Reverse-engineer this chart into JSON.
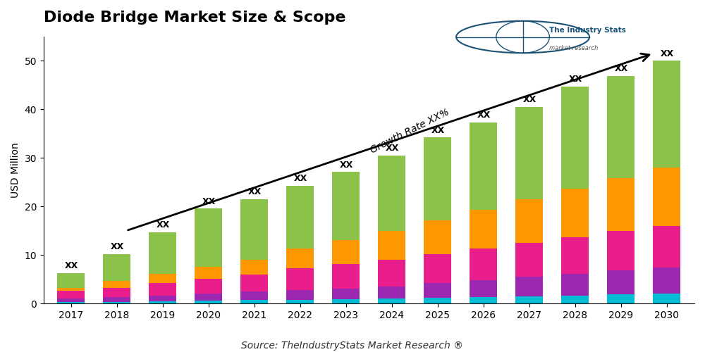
{
  "title": "Diode Bridge Market Size & Scope",
  "ylabel": "USD Million",
  "source": "Source: TheIndustryStats Market Research ®",
  "years": [
    2017,
    2018,
    2019,
    2020,
    2021,
    2022,
    2023,
    2024,
    2025,
    2026,
    2027,
    2028,
    2029,
    2030
  ],
  "bar_label": "XX",
  "growth_label": "Growth Rate XX%",
  "ylim": [
    0,
    55
  ],
  "yticks": [
    0,
    10,
    20,
    30,
    40,
    50
  ],
  "colors": [
    "#00bcd4",
    "#9c27b0",
    "#e91e8c",
    "#ff9800",
    "#8bc34a"
  ],
  "segments": [
    [
      0.3,
      0.8,
      1.5,
      0.7,
      3.0
    ],
    [
      0.4,
      1.0,
      1.8,
      1.5,
      5.5
    ],
    [
      0.5,
      1.2,
      2.5,
      2.0,
      8.5
    ],
    [
      0.6,
      1.5,
      3.0,
      2.5,
      12.0
    ],
    [
      0.7,
      1.8,
      3.5,
      3.0,
      12.5
    ],
    [
      0.8,
      2.0,
      4.5,
      4.0,
      13.0
    ],
    [
      0.9,
      2.2,
      5.0,
      5.0,
      14.0
    ],
    [
      1.0,
      2.5,
      5.5,
      6.0,
      15.5
    ],
    [
      1.2,
      3.0,
      6.0,
      7.0,
      17.0
    ],
    [
      1.3,
      3.5,
      6.5,
      8.0,
      18.0
    ],
    [
      1.5,
      4.0,
      7.0,
      9.0,
      19.0
    ],
    [
      1.7,
      4.5,
      7.5,
      10.0,
      21.0
    ],
    [
      1.9,
      5.0,
      8.0,
      11.0,
      21.0
    ],
    [
      2.0,
      5.5,
      8.5,
      12.0,
      22.0
    ]
  ],
  "totals": [
    6.3,
    10.2,
    14.7,
    19.6,
    21.5,
    24.3,
    27.1,
    30.5,
    34.2,
    37.3,
    40.5,
    44.7,
    46.9,
    50.0
  ],
  "background_color": "#ffffff",
  "bar_width": 0.6,
  "title_fontsize": 16,
  "label_fontsize": 9,
  "tick_fontsize": 10,
  "source_fontsize": 10,
  "logo_text1": "The Industry Stats",
  "logo_text2": "market research",
  "logo_color1": "#1a5276",
  "logo_color2": "#555555"
}
